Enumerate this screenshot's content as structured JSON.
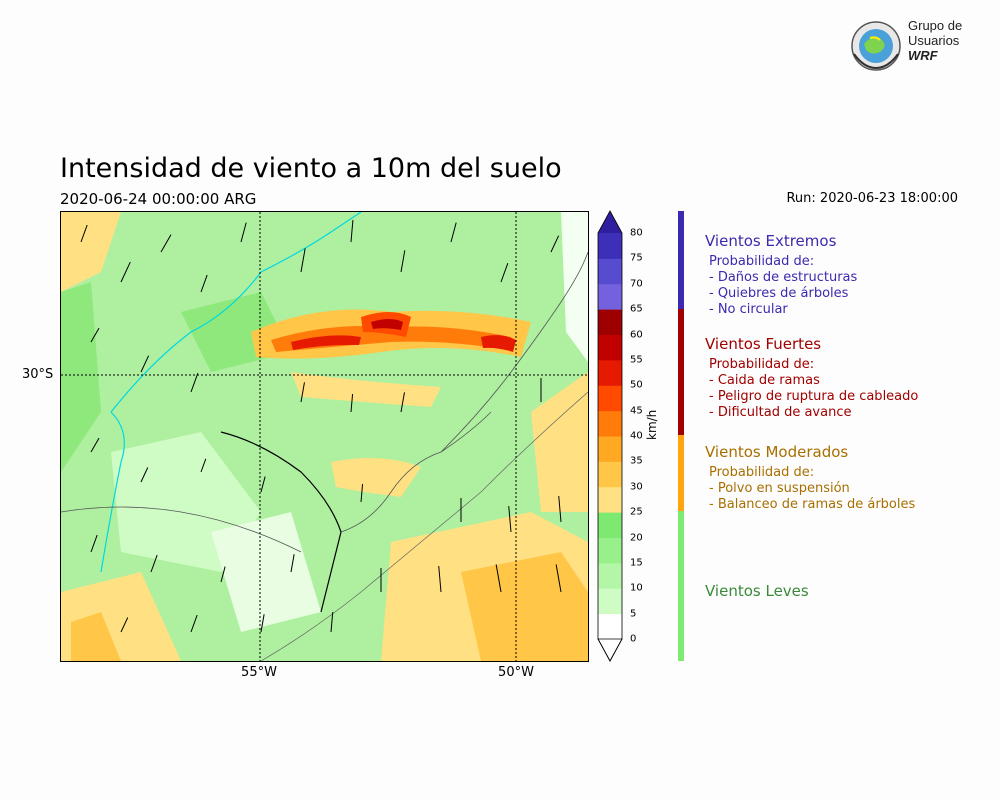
{
  "header": {
    "title": "Intensidad de viento a 10m del suelo",
    "valid_time": "2020-06-24 00:00:00 ARG",
    "run": "Run: 2020-06-23 18:00:00"
  },
  "logo": {
    "line1": "Grupo de",
    "line2": "Usuarios",
    "line3": "WRF"
  },
  "map": {
    "lat_label": "30°S",
    "lon_labels": [
      "55°W",
      "50°W"
    ],
    "units": "km/h"
  },
  "colorbar": {
    "ticks": [
      "0",
      "5",
      "10",
      "15",
      "20",
      "25",
      "30",
      "35",
      "40",
      "45",
      "50",
      "55",
      "60",
      "65",
      "70",
      "75",
      "80"
    ],
    "colors": [
      "#ffffff",
      "#cefcc4",
      "#b3f6a7",
      "#98f08b",
      "#7de970",
      "#ffe082",
      "#ffc648",
      "#ffa821",
      "#ff7b0a",
      "#ff4a00",
      "#e51a00",
      "#c10000",
      "#9e0000",
      "#7461de",
      "#574bd0",
      "#3d2fb7",
      "#2f1fa0"
    ]
  },
  "legend": {
    "categories": [
      {
        "title": "Vientos Extremos",
        "color": "#3b2ab0",
        "lines": [
          "Probabilidad de:",
          "- Daños de estructuras",
          "- Quiebres de árboles",
          "- No circular"
        ]
      },
      {
        "title": "Vientos Fuertes",
        "color": "#a00000",
        "lines": [
          "Probabilidad de:",
          "- Caida de ramas",
          "- Peligro de ruptura de cableado",
          "- Dificultad de avance"
        ]
      },
      {
        "title": "Vientos Moderados",
        "color": "#a86f00",
        "lines": [
          "Probabilidad de:",
          "- Polvo en suspensión",
          "- Balanceo de ramas de árboles"
        ]
      },
      {
        "title": "Vientos Leves",
        "color": "#3a8a3a",
        "lines": []
      }
    ],
    "bar_colors": [
      "#3b2ab0",
      "#a00000",
      "#ffa510",
      "#7ceb70"
    ]
  }
}
